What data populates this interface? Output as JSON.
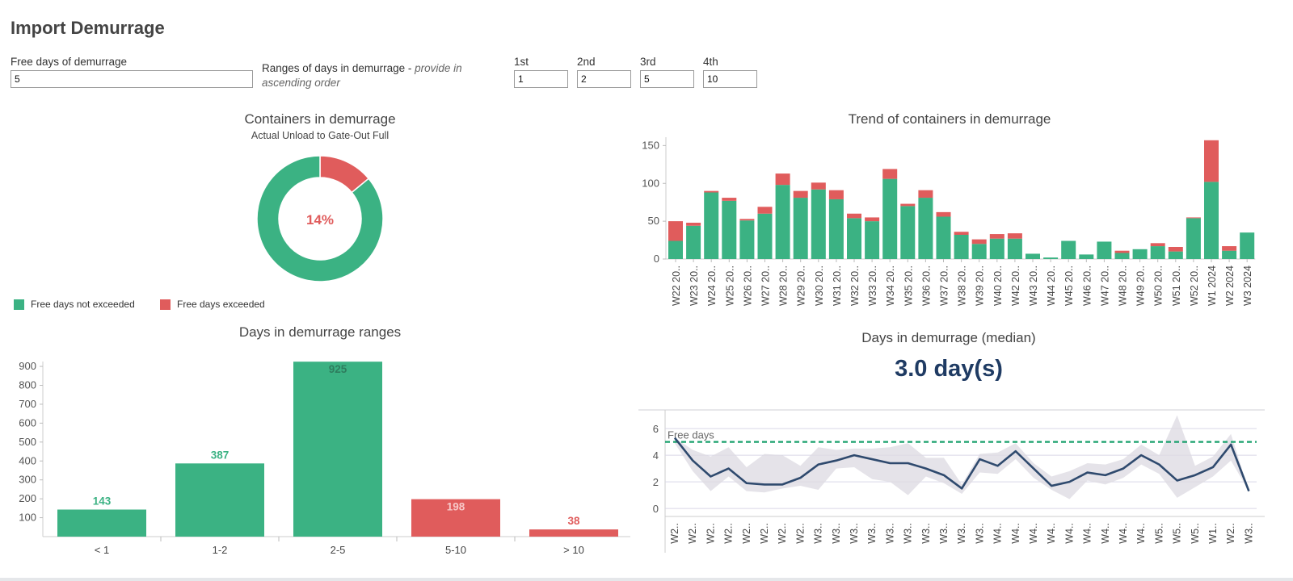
{
  "page": {
    "title": "Import Demurrage"
  },
  "params": {
    "free_days_label": "Free days of demurrage",
    "free_days_value": "5",
    "ranges_label": "Ranges of days in demurrage - ",
    "ranges_hint": "provide in ascending order",
    "range_inputs": [
      {
        "label": "1st",
        "value": "1"
      },
      {
        "label": "2nd",
        "value": "2"
      },
      {
        "label": "3rd",
        "value": "5"
      },
      {
        "label": "4th",
        "value": "10"
      }
    ]
  },
  "colors": {
    "green": "#3bb283",
    "red": "#e05c5c",
    "navy": "#2f4a6e",
    "band": "#dcdae2"
  },
  "chart_data": [
    {
      "id": "containers_in_demurrage",
      "type": "pie",
      "title": "Containers in demurrage",
      "subtitle": "Actual Unload to Gate-Out Full",
      "center_label": "14%",
      "slices": [
        {
          "name": "Free days exceeded",
          "value": 14
        },
        {
          "name": "Free days not exceeded",
          "value": 86
        }
      ],
      "legend": [
        "Free days not exceeded",
        "Free days exceeded"
      ]
    },
    {
      "id": "trend",
      "type": "bar",
      "stacked": true,
      "title": "Trend of containers in demurrage",
      "categories": [
        "W22 20..",
        "W23 20..",
        "W24 20..",
        "W25 20..",
        "W26 20..",
        "W27 20..",
        "W28 20..",
        "W29 20..",
        "W30 20..",
        "W31 20..",
        "W32 20..",
        "W33 20..",
        "W34 20..",
        "W35 20..",
        "W36 20..",
        "W37 20..",
        "W38 20..",
        "W39 20..",
        "W40 20..",
        "W42 20..",
        "W43 20..",
        "W44 20..",
        "W45 20..",
        "W46 20..",
        "W47 20..",
        "W48 20..",
        "W49 20..",
        "W50 20..",
        "W51 20..",
        "W52 20..",
        "W1 2024",
        "W2 2024",
        "W3 2024"
      ],
      "series": [
        {
          "name": "Free days not exceeded",
          "values": [
            24,
            44,
            88,
            77,
            51,
            60,
            98,
            81,
            92,
            79,
            54,
            50,
            106,
            70,
            81,
            56,
            32,
            20,
            27,
            27,
            7,
            2,
            24,
            6,
            23,
            8,
            13,
            17,
            10,
            54,
            102,
            11,
            35
          ]
        },
        {
          "name": "Free days exceeded",
          "values": [
            26,
            4,
            2,
            4,
            2,
            9,
            15,
            9,
            9,
            12,
            6,
            5,
            13,
            3,
            10,
            6,
            4,
            6,
            6,
            7,
            0,
            0,
            0,
            0,
            0,
            3,
            0,
            4,
            6,
            1,
            55,
            6,
            0
          ]
        }
      ],
      "yticks": [
        0,
        50,
        100,
        150
      ],
      "ylim": [
        0,
        160
      ]
    },
    {
      "id": "ranges",
      "type": "bar",
      "title": "Days in demurrage ranges",
      "categories": [
        "< 1",
        "1-2",
        "2-5",
        "5-10",
        "> 10"
      ],
      "values": [
        143,
        387,
        925,
        198,
        38
      ],
      "series_by_bar": [
        "not_exceeded",
        "not_exceeded",
        "not_exceeded",
        "exceeded",
        "exceeded"
      ],
      "yticks": [
        100,
        200,
        300,
        400,
        500,
        600,
        700,
        800,
        900
      ],
      "ylim": [
        0,
        960
      ]
    },
    {
      "id": "median",
      "type": "line",
      "title": "Days in demurrage (median)",
      "kpi": "3.0 day(s)",
      "reference_label": "Free days",
      "reference_value": 5,
      "categories": [
        "W2..",
        "W2..",
        "W2..",
        "W2..",
        "W2..",
        "W2..",
        "W2..",
        "W2..",
        "W3..",
        "W3..",
        "W3..",
        "W3..",
        "W3..",
        "W3..",
        "W3..",
        "W3..",
        "W3..",
        "W3..",
        "W4..",
        "W4..",
        "W4..",
        "W4..",
        "W4..",
        "W4..",
        "W4..",
        "W4..",
        "W4..",
        "W5..",
        "W5..",
        "W5..",
        "W1..",
        "W2..",
        "W3.."
      ],
      "values": [
        5.3,
        3.6,
        2.4,
        3.0,
        1.9,
        1.8,
        1.8,
        2.3,
        3.3,
        3.6,
        4.0,
        3.7,
        3.4,
        3.4,
        3.0,
        2.5,
        1.5,
        3.7,
        3.2,
        4.3,
        3.0,
        1.7,
        2.0,
        2.7,
        2.5,
        3.0,
        4.0,
        3.3,
        2.1,
        2.5,
        3.1,
        4.8,
        1.3
      ],
      "band_low": [
        4.9,
        2.8,
        1.3,
        2.4,
        1.3,
        1.2,
        1.5,
        1.7,
        1.4,
        3.0,
        3.1,
        2.2,
        2.0,
        1.0,
        2.4,
        1.9,
        1.1,
        2.7,
        2.6,
        3.7,
        2.3,
        1.4,
        0.7,
        2.1,
        1.8,
        2.3,
        3.3,
        2.6,
        0.8,
        1.6,
        2.4,
        3.6,
        1.3
      ],
      "band_high": [
        5.3,
        4.4,
        3.9,
        4.6,
        3.1,
        4.1,
        4.0,
        3.2,
        4.6,
        4.4,
        4.5,
        4.5,
        4.6,
        4.9,
        3.8,
        3.8,
        1.8,
        4.1,
        4.2,
        4.9,
        3.4,
        2.4,
        2.8,
        3.4,
        3.3,
        3.7,
        4.8,
        4.0,
        7.0,
        3.2,
        3.9,
        5.6,
        1.3
      ],
      "yticks": [
        0,
        2,
        4,
        6
      ],
      "ylim": [
        -0.6,
        7.4
      ]
    }
  ]
}
